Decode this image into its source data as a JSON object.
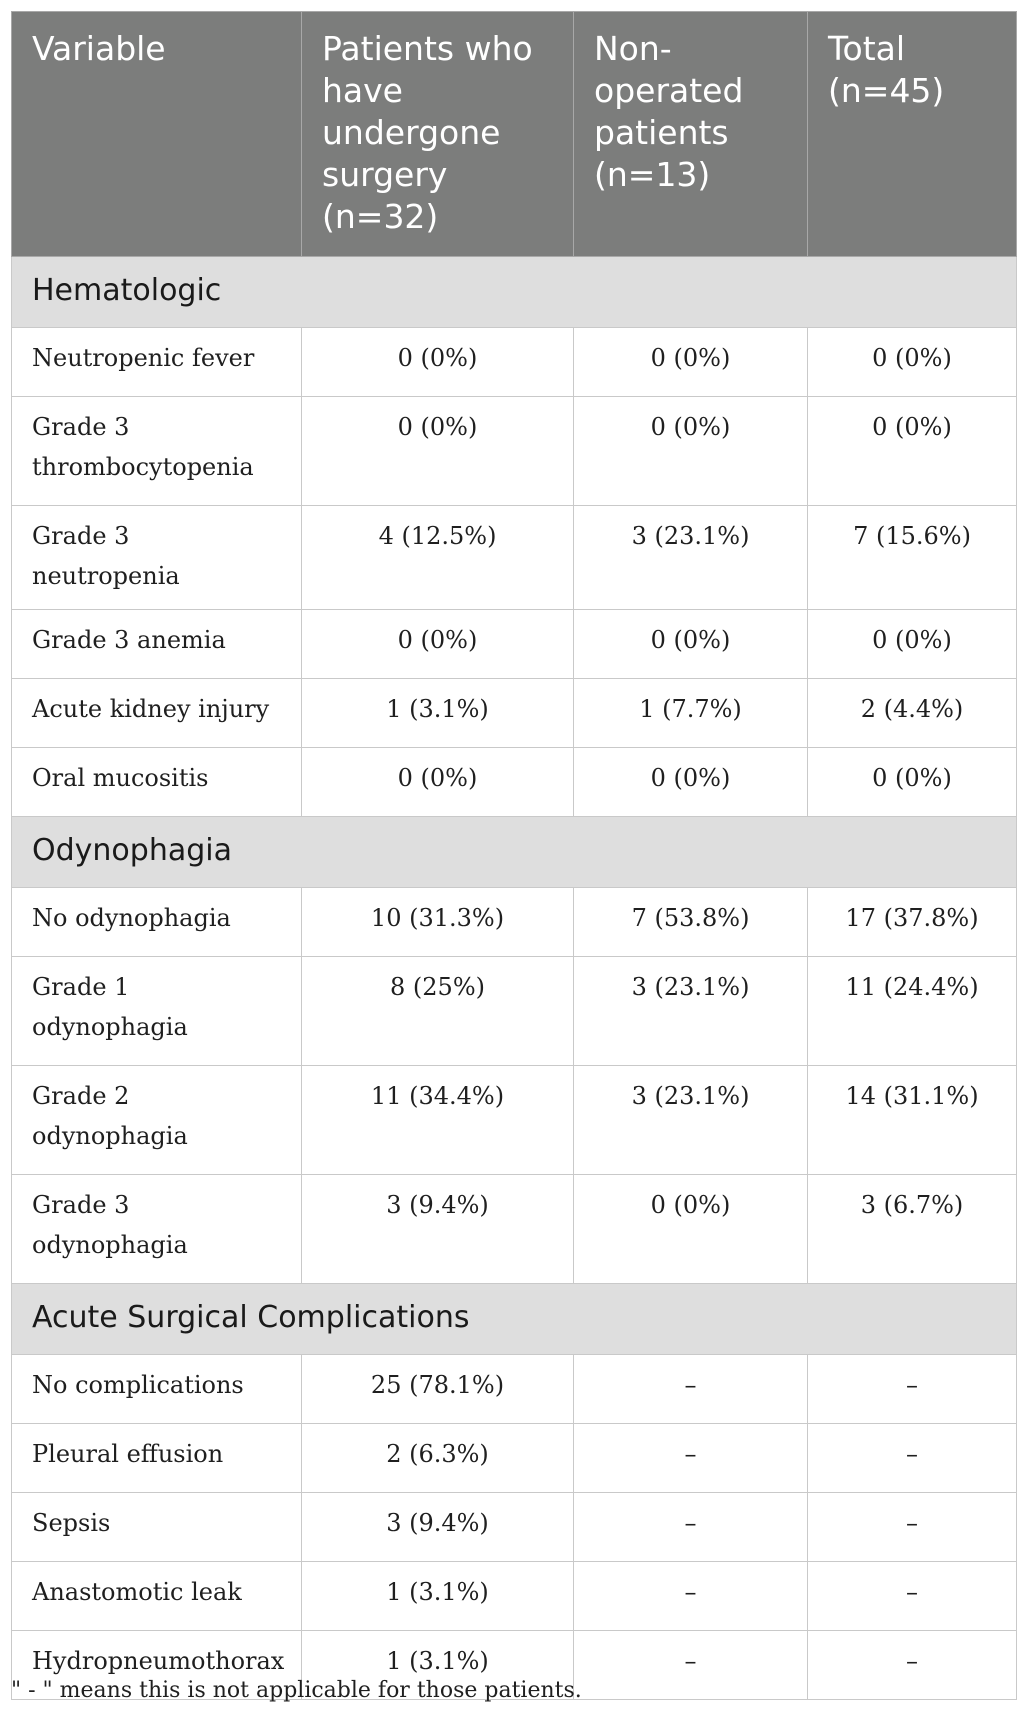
{
  "headers": [
    "Variable",
    "Patients who have undergone surgery (n=32)",
    "Non-operated patients (n=13)",
    "Total (n=45)"
  ],
  "sections": [
    {
      "title": "Hematologic",
      "rows": [
        {
          "label": "Neutropenic fever",
          "values": [
            "0 (0%)",
            "0 (0%)",
            "0 (0%)"
          ]
        },
        {
          "label": "Grade 3 thrombocytopenia",
          "values": [
            "0 (0%)",
            "0 (0%)",
            "0 (0%)"
          ]
        },
        {
          "label": "Grade 3 neutropenia",
          "values": [
            "4 (12.5%)",
            "3 (23.1%)",
            "7 (15.6%)"
          ]
        },
        {
          "label": "Grade 3 anemia",
          "values": [
            "0 (0%)",
            "0 (0%)",
            "0 (0%)"
          ]
        },
        {
          "label": "Acute kidney injury",
          "values": [
            "1 (3.1%)",
            "1 (7.7%)",
            "2 (4.4%)"
          ]
        },
        {
          "label": "Oral mucositis",
          "values": [
            "0 (0%)",
            "0 (0%)",
            "0 (0%)"
          ]
        }
      ]
    },
    {
      "title": "Odynophagia",
      "rows": [
        {
          "label": "No odynophagia",
          "values": [
            "10 (31.3%)",
            "7 (53.8%)",
            "17 (37.8%)"
          ]
        },
        {
          "label": "Grade 1 odynophagia",
          "values": [
            "8 (25%)",
            "3 (23.1%)",
            "11 (24.4%)"
          ]
        },
        {
          "label": "Grade 2 odynophagia",
          "values": [
            "11 (34.4%)",
            "3 (23.1%)",
            "14 (31.1%)"
          ]
        },
        {
          "label": "Grade 3 odynophagia",
          "values": [
            "3 (9.4%)",
            "0 (0%)",
            "3 (6.7%)"
          ]
        }
      ]
    },
    {
      "title": "Acute Surgical Complications",
      "rows": [
        {
          "label": "No complications",
          "values": [
            "25 (78.1%)",
            "–",
            "–"
          ]
        },
        {
          "label": "Pleural effusion",
          "values": [
            "2 (6.3%)",
            "–",
            "–"
          ]
        },
        {
          "label": "Sepsis",
          "values": [
            "3 (9.4%)",
            "–",
            "–"
          ]
        },
        {
          "label": "Anastomotic leak",
          "values": [
            "1 (3.1%)",
            "–",
            "–"
          ]
        },
        {
          "label": "Hydropneumothorax",
          "values": [
            "1 (3.1%)",
            "–",
            "–"
          ]
        }
      ]
    }
  ],
  "footnote": "\" - \" means this is not applicable for those patients."
}
